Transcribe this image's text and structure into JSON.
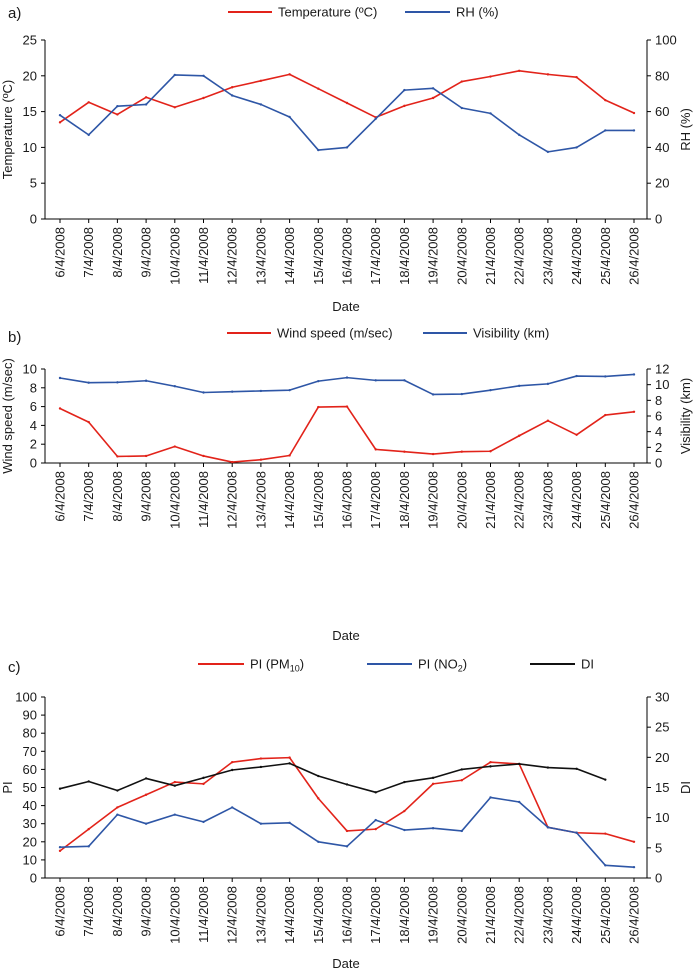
{
  "chart_data": [
    {
      "type": "line",
      "panel_label": "a)",
      "x_tick_labels": [
        "6/4/2008",
        "7/4/2008",
        "8/4/2008",
        "9/4/2008",
        "10/4/2008",
        "11/4/2008",
        "12/4/2008",
        "13/4/2008",
        "14/4/2008",
        "15/4/2008",
        "16/4/2008",
        "17/4/2008",
        "18/4/2008",
        "19/4/2008",
        "20/4/2008",
        "21/4/2008",
        "22/4/2008",
        "23/4/2008",
        "24/4/2008",
        "25/4/2008",
        "26/4/2008"
      ],
      "xlabel": "Date",
      "ylabel_left": "Temperature (ºC)",
      "ylabel_right": "RH (%)",
      "ylim_left": [
        0,
        25
      ],
      "ylim_right": [
        0,
        100
      ],
      "yticks_left": [
        0,
        5,
        10,
        15,
        20,
        25
      ],
      "yticks_right": [
        0,
        20,
        40,
        60,
        80,
        100
      ],
      "legend_position": "top",
      "grid": false,
      "series": [
        {
          "name": "Temperature (ºC)",
          "axis": "left",
          "color": "#e2231a",
          "values": [
            13.5,
            16.3,
            14.6,
            17.0,
            15.6,
            16.9,
            18.4,
            19.3,
            20.2,
            18.2,
            16.2,
            14.2,
            15.8,
            16.9,
            19.2,
            19.9,
            20.7,
            20.2,
            19.8,
            16.6,
            14.8
          ]
        },
        {
          "name": "RH (%)",
          "axis": "right",
          "color": "#2e56a6",
          "values": [
            58,
            47,
            63,
            64,
            80.5,
            80,
            69,
            64,
            57,
            38.5,
            40,
            56,
            72,
            73,
            62,
            59,
            47,
            37.5,
            40,
            49.5,
            49.5
          ]
        }
      ]
    },
    {
      "type": "line",
      "panel_label": "b)",
      "x_tick_labels": [
        "6/4/2008",
        "7/4/2008",
        "8/4/2008",
        "9/4/2008",
        "10/4/2008",
        "11/4/2008",
        "12/4/2008",
        "13/4/2008",
        "14/4/2008",
        "15/4/2008",
        "16/4/2008",
        "17/4/2008",
        "18/4/2008",
        "19/4/2008",
        "20/4/2008",
        "21/4/2008",
        "22/4/2008",
        "23/4/2008",
        "24/4/2008",
        "25/4/2008",
        "26/4/2008"
      ],
      "xlabel": "Date",
      "ylabel_left": "Wind speed (m/sec)",
      "ylabel_right": "Visibility (km)",
      "ylim_left": [
        0,
        10
      ],
      "ylim_right": [
        0,
        12
      ],
      "yticks_left": [
        0,
        2,
        4,
        6,
        8,
        10
      ],
      "yticks_right": [
        0,
        2,
        4,
        6,
        8,
        10,
        12
      ],
      "legend_position": "top",
      "grid": false,
      "series": [
        {
          "name": "Wind speed (m/sec)",
          "axis": "left",
          "color": "#e2231a",
          "values": [
            5.8,
            4.35,
            0.7,
            0.75,
            1.75,
            0.75,
            0.1,
            0.35,
            0.8,
            5.95,
            6.0,
            1.45,
            1.2,
            0.95,
            1.2,
            1.25,
            2.9,
            4.5,
            3.0,
            5.1,
            5.45
          ]
        },
        {
          "name": "Visibility (km)",
          "axis": "right",
          "color": "#2e56a6",
          "values": [
            10.85,
            10.25,
            10.3,
            10.5,
            9.8,
            9.0,
            9.1,
            9.2,
            9.3,
            10.45,
            10.9,
            10.55,
            10.55,
            8.75,
            8.8,
            9.3,
            9.85,
            10.1,
            11.1,
            11.05,
            11.3
          ]
        }
      ]
    },
    {
      "type": "line",
      "panel_label": "c)",
      "x_tick_labels": [
        "6/4/2008",
        "7/4/2008",
        "8/4/2008",
        "9/4/2008",
        "10/4/2008",
        "11/4/2008",
        "12/4/2008",
        "13/4/2008",
        "14/4/2008",
        "15/4/2008",
        "16/4/2008",
        "17/4/2008",
        "18/4/2008",
        "19/4/2008",
        "20/4/2008",
        "21/4/2008",
        "22/4/2008",
        "23/4/2008",
        "24/4/2008",
        "25/4/2008",
        "26/4/2008"
      ],
      "xlabel": "Date",
      "ylabel_left": "PI",
      "ylabel_right": "DI",
      "ylim_left": [
        0,
        100
      ],
      "ylim_right": [
        0,
        30
      ],
      "yticks_left": [
        0,
        10,
        20,
        30,
        40,
        50,
        60,
        70,
        80,
        90,
        100
      ],
      "yticks_right": [
        0,
        5,
        10,
        15,
        20,
        25,
        30
      ],
      "legend_position": "top",
      "grid": false,
      "series": [
        {
          "name": "PI (PM10)",
          "legend_main": "PI (PM",
          "legend_sub": "10",
          "legend_tail": ")",
          "axis": "left",
          "color": "#e2231a",
          "values": [
            15,
            27,
            39,
            46,
            53,
            52,
            64,
            66,
            66.5,
            44,
            26,
            27,
            37,
            52,
            54,
            64,
            63,
            28,
            25,
            24.5,
            20
          ]
        },
        {
          "name": "PI (NO2)",
          "legend_main": "PI (NO",
          "legend_sub": "2",
          "legend_tail": ")",
          "axis": "left",
          "color": "#2e56a6",
          "values": [
            17,
            17.5,
            35,
            30,
            35,
            31,
            39,
            30,
            30.5,
            20,
            17.5,
            32,
            26.5,
            27.5,
            26,
            44.5,
            42,
            28,
            25,
            7,
            6
          ]
        },
        {
          "name": "DI",
          "axis": "right",
          "color": "#111111",
          "values": [
            14.8,
            16.0,
            14.5,
            16.5,
            15.3,
            16.6,
            17.9,
            18.4,
            19.0,
            16.9,
            15.5,
            14.2,
            15.9,
            16.6,
            18.0,
            18.5,
            18.9,
            18.3,
            18.1,
            16.3,
            null
          ]
        }
      ]
    }
  ]
}
